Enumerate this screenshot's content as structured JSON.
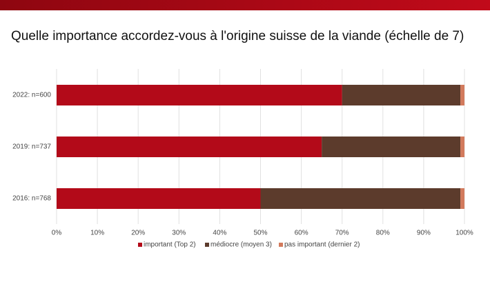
{
  "chart_data": {
    "type": "stacked-barh",
    "title": "Quelle importance accordez-vous à l'origine suisse de la viande (échelle de 7)",
    "categories": [
      "2022: n=600",
      "2019: n=737",
      "2016: n=768"
    ],
    "series": [
      {
        "name": "important (Top 2)",
        "color": "#b30a19",
        "values": [
          70,
          65,
          50
        ]
      },
      {
        "name": "médiocre (moyen 3)",
        "color": "#5c3b2c",
        "values": [
          29,
          34,
          49
        ]
      },
      {
        "name": "pas important (dernier 2)",
        "color": "#d27a5c",
        "values": [
          1,
          1,
          1
        ]
      }
    ],
    "xlim": [
      0,
      100
    ],
    "xticks": [
      {
        "value": 0,
        "label": "0%"
      },
      {
        "value": 10,
        "label": "10%"
      },
      {
        "value": 20,
        "label": "20%"
      },
      {
        "value": 30,
        "label": "30%"
      },
      {
        "value": 40,
        "label": "40%"
      },
      {
        "value": 50,
        "label": "50%"
      },
      {
        "value": 60,
        "label": "60%"
      },
      {
        "value": 70,
        "label": "70%"
      },
      {
        "value": 80,
        "label": "80%"
      },
      {
        "value": 90,
        "label": "90%"
      },
      {
        "value": 100,
        "label": "100%"
      }
    ],
    "grid": true,
    "legend": "bottom"
  }
}
